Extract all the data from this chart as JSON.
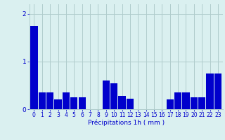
{
  "hours": [
    0,
    1,
    2,
    3,
    4,
    5,
    6,
    7,
    8,
    9,
    10,
    11,
    12,
    13,
    14,
    15,
    16,
    17,
    18,
    19,
    20,
    21,
    22,
    23
  ],
  "values": [
    1.75,
    0.35,
    0.35,
    0.2,
    0.35,
    0.25,
    0.25,
    0.0,
    0.0,
    0.6,
    0.55,
    0.28,
    0.22,
    0.0,
    0.0,
    0.0,
    0.0,
    0.2,
    0.35,
    0.35,
    0.25,
    0.25,
    0.75,
    0.75
  ],
  "bar_color": "#0000cc",
  "background_color": "#daf0f0",
  "grid_color": "#b0cccc",
  "axis_label_color": "#0000cc",
  "tick_color": "#0000cc",
  "xlabel": "Précipitations 1h ( mm )",
  "ylim": [
    0,
    2.2
  ],
  "yticks": [
    0,
    1,
    2
  ],
  "bar_width": 0.9,
  "xlabel_fontsize": 6.5,
  "tick_fontsize": 5.5
}
